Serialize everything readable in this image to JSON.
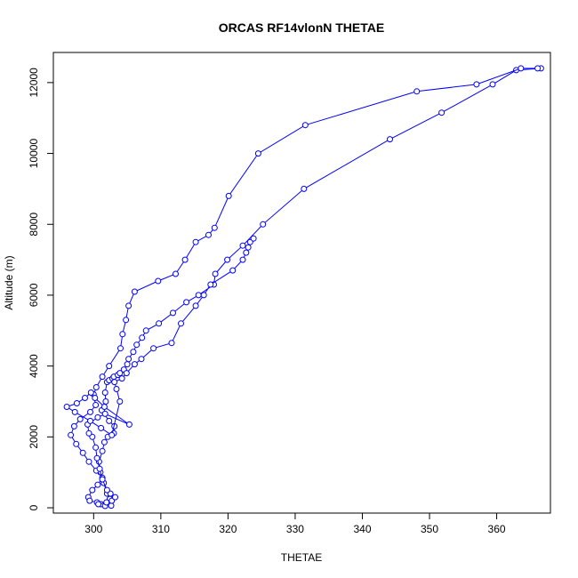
{
  "chart_data": {
    "type": "line",
    "title": "ORCAS RF14vlonN THETAE",
    "xlabel": "THETAE",
    "ylabel": "Altitude (m)",
    "xlim": [
      294,
      368
    ],
    "ylim": [
      -150,
      12850
    ],
    "xticks": [
      300,
      310,
      320,
      330,
      340,
      350,
      360
    ],
    "yticks": [
      0,
      2000,
      4000,
      6000,
      8000,
      10000,
      12000
    ],
    "xtick_labels": [
      "300",
      "310",
      "320",
      "330",
      "340",
      "350",
      "360"
    ],
    "ytick_labels": [
      "0",
      "2000",
      "4000",
      "6000",
      "8000",
      "10000",
      "12000"
    ],
    "grid": false,
    "line_color": "#0000ff",
    "marker": "open-circle",
    "series": [
      {
        "x": [
          302.6,
          302.4,
          302.0,
          301.5,
          301.0,
          300.8,
          301.3,
          301.6,
          302.1,
          303.0,
          303.1,
          302.3,
          301.2,
          301.8,
          301.7,
          302.0,
          302.3,
          302.8,
          303.0,
          303.6,
          303.9,
          304.5,
          305.0,
          305.2,
          305.9,
          306.4,
          307.2,
          307.8,
          309.7,
          311.8,
          313.8,
          315.6,
          317.9,
          318.1,
          319.9,
          322.2,
          325.2,
          331.3,
          344.1,
          351.8,
          359.4,
          362.9,
          366.6
        ],
        "y": [
          60,
          250,
          400,
          700,
          1000,
          1300,
          1600,
          1850,
          2000,
          2100,
          2300,
          2450,
          2750,
          3000,
          3250,
          3550,
          3600,
          3650,
          3700,
          3750,
          3800,
          3900,
          4050,
          4200,
          4400,
          4600,
          4800,
          5000,
          5200,
          5500,
          5800,
          6000,
          6300,
          6600,
          7000,
          7400,
          8000,
          9000,
          10400,
          11150,
          11950,
          12350,
          12400
        ]
      },
      {
        "x": [
          366.1,
          363.6,
          357.0,
          348.1,
          331.5,
          324.5,
          320.1,
          318.0,
          317.1,
          315.2,
          313.6,
          312.2,
          309.6,
          306.1,
          305.2,
          304.8,
          304.3,
          304.0,
          302.3,
          301.3,
          300.4,
          300.0,
          300.3,
          299.5,
          298.0,
          297.1,
          296.6,
          297.4,
          298.4,
          299.3,
          300.4,
          301.3,
          300.6,
          299.8,
          299.2,
          299.4,
          300.5,
          301.1,
          301.7
        ],
        "y": [
          12400,
          12400,
          11950,
          11750,
          10800,
          10000,
          8800,
          7900,
          7700,
          7500,
          7000,
          6600,
          6400,
          6100,
          5700,
          5300,
          4900,
          4500,
          4000,
          3700,
          3400,
          3200,
          2900,
          2700,
          2500,
          2300,
          2050,
          1800,
          1550,
          1300,
          1050,
          850,
          650,
          500,
          300,
          200,
          150,
          100,
          50
        ]
      },
      {
        "x": [
          300.7,
          301.9,
          302.7,
          303.2,
          302.5,
          302.0,
          301.3,
          300.9,
          300.5,
          300.3,
          299.8,
          299.3,
          299.1,
          300.6,
          301.7,
          305.3,
          301.6,
          300.2,
          299.6,
          298.7,
          297.5,
          296.0,
          297.2,
          299.5,
          301.1,
          302.7,
          303.9,
          303.4,
          303.1,
          304.2,
          304.9,
          306.1,
          307.1,
          308.9,
          311.6,
          313.0,
          315.2,
          316.4,
          317.4,
          320.7,
          322.2,
          322.7,
          323.0,
          323.3,
          323.8
        ],
        "y": [
          100,
          150,
          200,
          300,
          400,
          500,
          800,
          1100,
          1400,
          1700,
          2000,
          2100,
          2350,
          2550,
          2650,
          2350,
          2850,
          3100,
          3250,
          3100,
          2950,
          2850,
          2700,
          2450,
          2250,
          2050,
          3000,
          3350,
          3550,
          3650,
          3800,
          4050,
          4200,
          4500,
          4650,
          5200,
          5700,
          6000,
          6300,
          6700,
          7000,
          7200,
          7350,
          7500,
          7600
        ]
      }
    ]
  }
}
